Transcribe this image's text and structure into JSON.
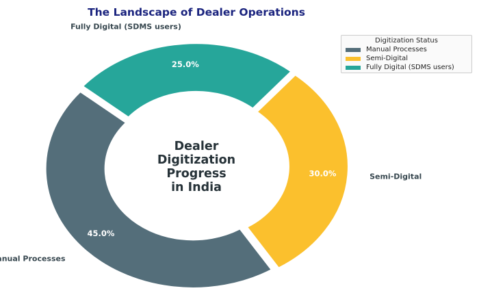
{
  "chart_data": {
    "type": "pie",
    "donut": true,
    "title": "The Landscape of Dealer Operations",
    "center_text": [
      "Dealer",
      "Digitization",
      "Progress",
      "in India"
    ],
    "categories": [
      "Manual Processes",
      "Semi-Digital",
      "Fully Digital (SDMS users)"
    ],
    "values": [
      45,
      30,
      25
    ],
    "value_labels": [
      "45.0%",
      "30.0%",
      "25.0%"
    ],
    "colors": [
      "#546E7A",
      "#FBC02D",
      "#26A69A"
    ],
    "start_angle_deg": 140,
    "direction": "counterclockwise",
    "legend": {
      "title": "Digitization Status",
      "placement": "top-right"
    },
    "title_color": "#1A237E"
  }
}
